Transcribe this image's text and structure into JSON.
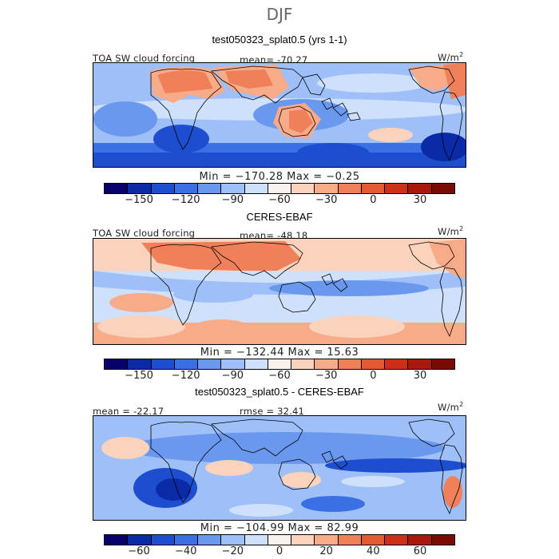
{
  "season": "DJF",
  "panels": [
    {
      "title": "test050323_splat0.5 (yrs 1-1)",
      "variable": "TOA SW cloud forcing",
      "mean_label": "mean= -70.27",
      "units": "W/m",
      "units_sup": "2",
      "minmax": "Min = −170.28 Max =  −0.25",
      "cbar_ticks": [
        "−150",
        "−120",
        "−90",
        "−60",
        "−30",
        "0",
        "30"
      ]
    },
    {
      "title": "CERES-EBAF",
      "variable": "TOA SW cloud forcing",
      "mean_label": "mean= -48.18",
      "units": "W/m",
      "units_sup": "2",
      "minmax": "Min = −132.44 Max =  15.63",
      "cbar_ticks": [
        "−150",
        "−120",
        "−90",
        "−60",
        "−30",
        "0",
        "30"
      ]
    },
    {
      "title": "test050323_splat0.5 - CERES-EBAF",
      "mean_label": "mean = -22.17",
      "rmse_label": "rmse =  32.41",
      "units": "W/m",
      "units_sup": "2",
      "minmax": "Min = −104.99 Max =  82.99",
      "cbar_ticks": [
        "−60",
        "−40",
        "−20",
        "0",
        "20",
        "40",
        "60"
      ]
    }
  ],
  "chart_data": [
    {
      "type": "heatmap",
      "title": "test050323_splat0.5 (yrs 1-1)",
      "variable": "TOA SW cloud forcing",
      "season": "DJF",
      "units": "W/m2",
      "mean": -70.27,
      "min": -170.28,
      "max": -0.25,
      "colorbar_levels": [
        -165,
        -150,
        -135,
        -120,
        -105,
        -90,
        -75,
        -60,
        -45,
        -30,
        -15,
        0,
        15,
        30,
        45
      ],
      "colorbar_tick_values": [
        -150,
        -120,
        -90,
        -60,
        -30,
        0,
        30
      ]
    },
    {
      "type": "heatmap",
      "title": "CERES-EBAF",
      "variable": "TOA SW cloud forcing",
      "season": "DJF",
      "units": "W/m2",
      "mean": -48.18,
      "min": -132.44,
      "max": 15.63,
      "colorbar_levels": [
        -165,
        -150,
        -135,
        -120,
        -105,
        -90,
        -75,
        -60,
        -45,
        -30,
        -15,
        0,
        15,
        30,
        45
      ],
      "colorbar_tick_values": [
        -150,
        -120,
        -90,
        -60,
        -30,
        0,
        30
      ]
    },
    {
      "type": "heatmap",
      "title": "test050323_splat0.5 - CERES-EBAF",
      "season": "DJF",
      "units": "W/m2",
      "mean": -22.17,
      "rmse": 32.41,
      "min": -104.99,
      "max": 82.99,
      "colorbar_levels": [
        -70,
        -60,
        -50,
        -40,
        -30,
        -20,
        -10,
        0,
        10,
        20,
        30,
        40,
        50,
        60,
        70
      ],
      "colorbar_tick_values": [
        -60,
        -40,
        -20,
        0,
        20,
        40,
        60
      ]
    }
  ],
  "colormap": [
    "#08006b",
    "#0a2aa8",
    "#1d4ed0",
    "#3a70e4",
    "#6a98ef",
    "#9ebff7",
    "#cfe0fb",
    "#f7f2ec",
    "#fbd2bc",
    "#f8ab88",
    "#f0805a",
    "#e35a35",
    "#cc3018",
    "#a8180c",
    "#7a0a04"
  ]
}
